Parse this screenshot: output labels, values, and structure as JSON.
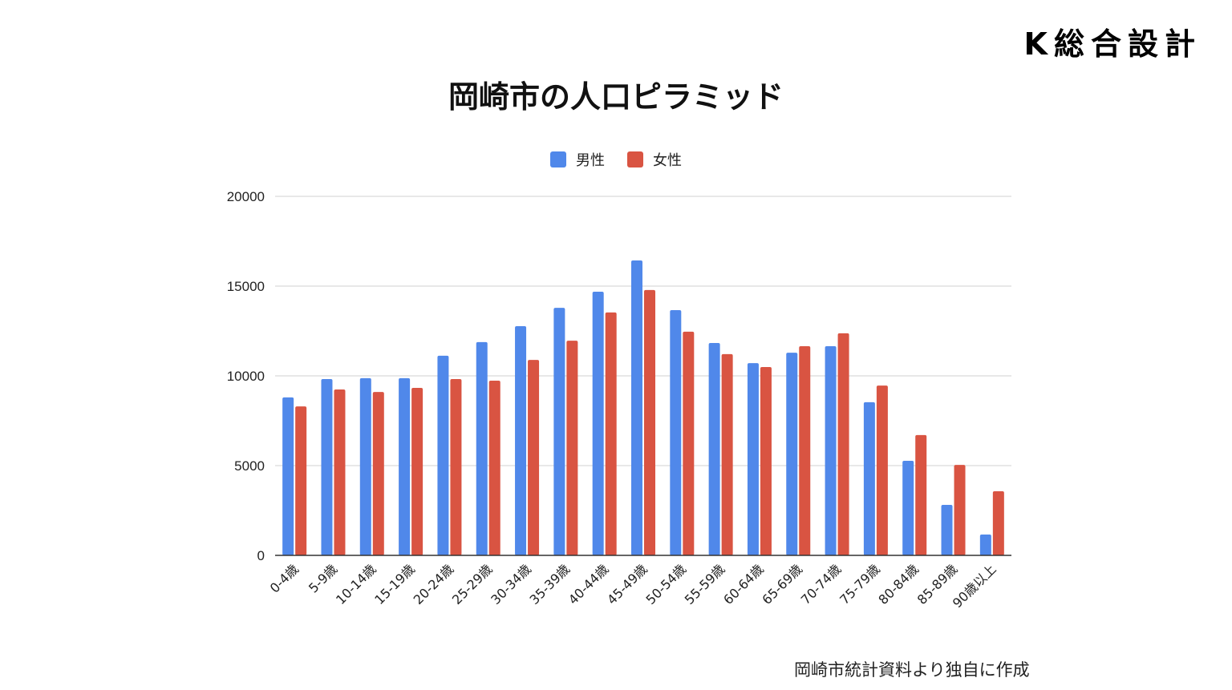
{
  "logo": "K総合設計",
  "source_note": "岡崎市統計資料より独自に作成",
  "chart_data": {
    "type": "bar",
    "title": "岡崎市の人口ピラミッド",
    "xlabel": "",
    "ylabel": "",
    "ylim": [
      0,
      20000
    ],
    "yticks": [
      "0",
      "5000",
      "10000",
      "15000",
      "20000"
    ],
    "grid": true,
    "legend_position": "top",
    "categories": [
      "0-4歳",
      "5-9歳",
      "10-14歳",
      "15-19歳",
      "20-24歳",
      "25-29歳",
      "30-34歳",
      "35-39歳",
      "40-44歳",
      "45-49歳",
      "50-54歳",
      "55-59歳",
      "60-64歳",
      "65-69歳",
      "70-74歳",
      "75-79歳",
      "80-84歳",
      "85-89歳",
      "90歳以上"
    ],
    "series": [
      {
        "name": "男性",
        "color": "#5088EA",
        "values": [
          8800,
          9820,
          9870,
          9870,
          11120,
          11880,
          12770,
          13790,
          14690,
          16430,
          13660,
          11830,
          10710,
          11290,
          11650,
          8530,
          5270,
          2810,
          1160
        ]
      },
      {
        "name": "女性",
        "color": "#D95442",
        "values": [
          8300,
          9240,
          9100,
          9330,
          9820,
          9730,
          10890,
          11960,
          13530,
          14780,
          12460,
          11210,
          10490,
          11650,
          12370,
          9460,
          6700,
          5040,
          3570
        ]
      }
    ]
  }
}
